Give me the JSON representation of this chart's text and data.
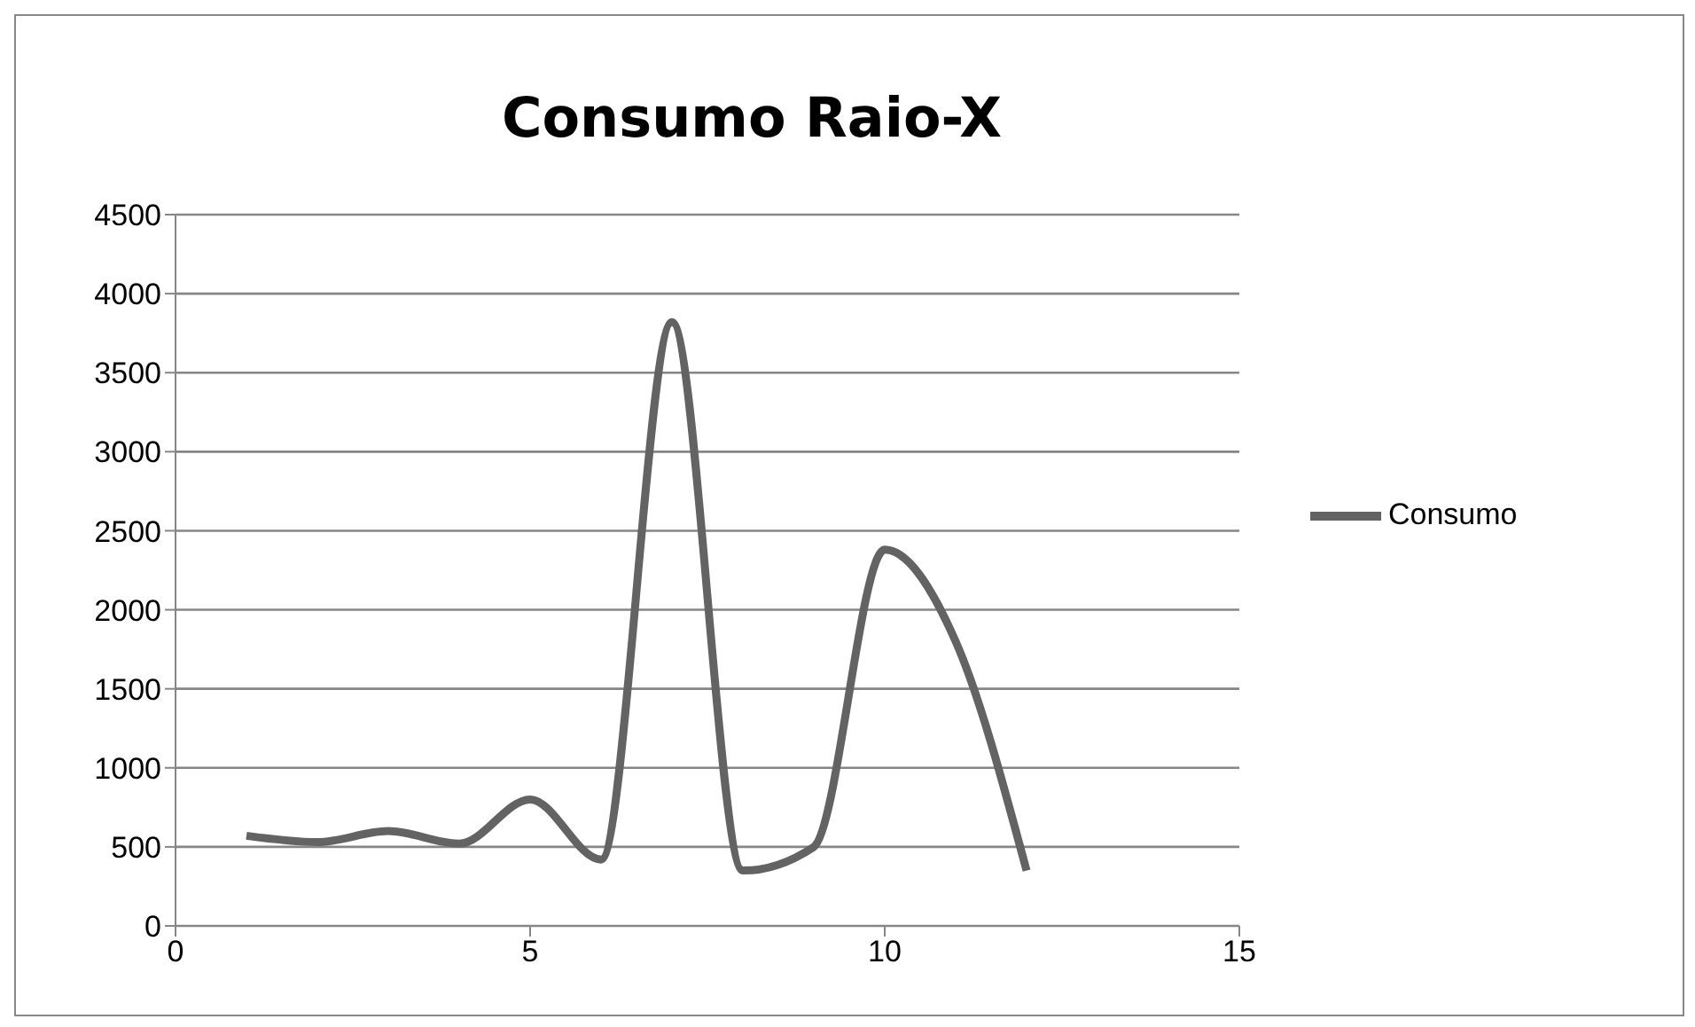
{
  "chart_data": {
    "type": "line",
    "title": "Consumo Raio-X",
    "x": [
      1,
      2,
      3,
      4,
      5,
      6,
      7,
      8,
      9,
      10,
      11,
      12
    ],
    "series": [
      {
        "name": "Consumo",
        "color": "#636363",
        "values": [
          570,
          530,
          600,
          520,
          800,
          420,
          3820,
          350,
          500,
          2380,
          1800,
          350
        ]
      }
    ],
    "xlim": [
      0,
      15
    ],
    "xticks": [
      0,
      5,
      10,
      15
    ],
    "ylim": [
      0,
      4500
    ],
    "yticks": [
      0,
      500,
      1000,
      1500,
      2000,
      2500,
      3000,
      3500,
      4000,
      4500
    ],
    "grid": "y",
    "legend": "right",
    "marker": "none",
    "line_style": "solid"
  }
}
